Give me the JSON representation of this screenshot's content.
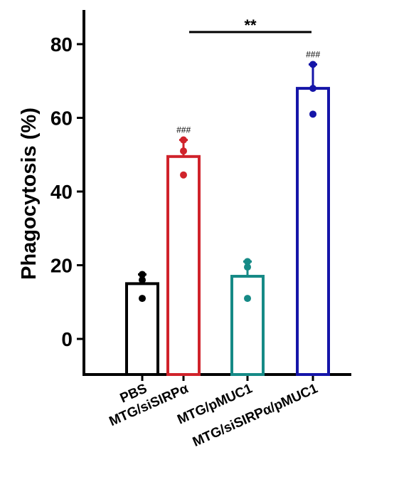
{
  "chart_data": {
    "type": "bar",
    "title": "",
    "xlabel": "",
    "ylabel": "Phagocytosis (%)",
    "ylim": [
      -10,
      88
    ],
    "yticks": [
      0,
      20,
      40,
      60,
      80
    ],
    "ytick_labels": [
      "0",
      "20",
      "40",
      "60",
      "80"
    ],
    "categories": [
      "PBS",
      "MTG/siSIRPα",
      "MTG/pMUC1",
      "MTG/siSIRPα/pMUC1"
    ],
    "values": [
      15,
      49.5,
      17,
      68
    ],
    "error_upper": [
      17.5,
      54,
      21,
      74.5
    ],
    "colors": [
      "#000000",
      "#d0232b",
      "#168a86",
      "#1515a8"
    ],
    "points": [
      [
        17.5,
        16,
        11
      ],
      [
        54,
        51,
        44.5
      ],
      [
        21,
        19.5,
        11
      ],
      [
        74.5,
        68,
        61
      ]
    ],
    "significance": [
      {
        "index": 1,
        "label": "###"
      },
      {
        "index": 3,
        "label": "###"
      }
    ],
    "comparison": {
      "from": 1,
      "to": 3,
      "label": "**"
    },
    "grid": false,
    "legend": "none"
  }
}
